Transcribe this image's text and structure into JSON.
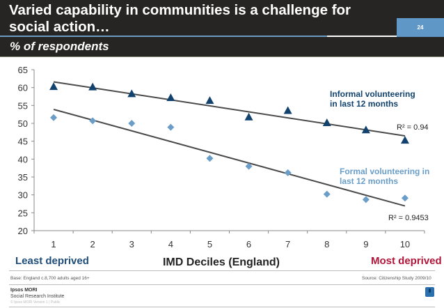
{
  "header": {
    "title": "Varied capability in communities is a challenge for\nsocial action…",
    "page_number": "24",
    "subtitle": "% of respondents"
  },
  "chart_data": {
    "type": "scatter",
    "title": "Varied capability in communities is a challenge for social action…",
    "xlabel": "IMD Deciles (England)",
    "ylabel": "% of respondents",
    "x": [
      1,
      2,
      3,
      4,
      5,
      6,
      7,
      8,
      9,
      10
    ],
    "x_ticks": [
      "1",
      "2",
      "3",
      "4",
      "5",
      "6",
      "7",
      "8",
      "9",
      "10"
    ],
    "y_ticks": [
      "20",
      "25",
      "30",
      "35",
      "40",
      "45",
      "50",
      "55",
      "60",
      "65"
    ],
    "xlim": [
      0.5,
      10.5
    ],
    "ylim": [
      20,
      65
    ],
    "grid": false,
    "series": [
      {
        "name": "Informal volunteering in last 12 months",
        "marker": "triangle",
        "color": "#12426e",
        "values": [
          60.3,
          60.2,
          58.3,
          57.2,
          56.4,
          51.8,
          53.6,
          50.2,
          48.2,
          45.3
        ],
        "trendline": {
          "type": "linear",
          "start": 61.6,
          "end": 46.5,
          "r_squared_label": "R² = 0.94"
        }
      },
      {
        "name": "Formal volunteering in last 12 months",
        "marker": "diamond",
        "color": "#6a9ec9",
        "values": [
          51.6,
          50.7,
          50.0,
          48.9,
          40.2,
          38.0,
          36.2,
          30.2,
          28.7,
          29.1
        ],
        "trendline": {
          "type": "linear",
          "start": 53.9,
          "end": 26.9,
          "r_squared_label": "R² = 0.9453"
        }
      }
    ],
    "annotations": {
      "informal_label": [
        "Informal volunteering",
        "in last 12 months"
      ],
      "formal_label": [
        "Formal volunteering in",
        "last 12 months"
      ],
      "least_deprived": "Least deprived",
      "most_deprived": "Most  deprived"
    },
    "trendline_color": "#4a4a4a"
  },
  "footer": {
    "base": "Base: England c.8,700 adults aged 16+",
    "source": "Source: Citizenship Study 2009/10",
    "brand_line1": "Ipsos MORI",
    "brand_line2": "Social Research Institute",
    "brand_line3": "© Ipsos MORI    Version 1 | Public",
    "logo": "ipsos-logo"
  }
}
